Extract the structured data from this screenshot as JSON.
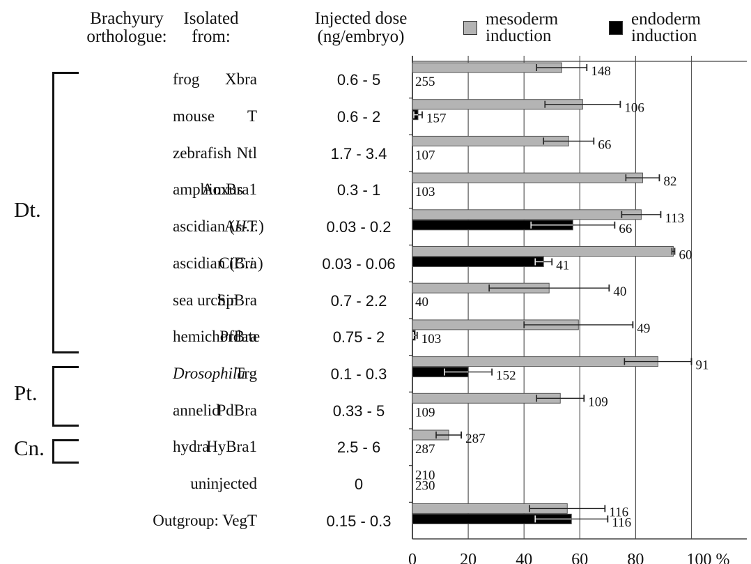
{
  "headers": {
    "orthologue": "Brachyury\northologue:",
    "source": "Isolated\nfrom:",
    "dose": "Injected dose\n(ng/embryo)"
  },
  "legend": [
    {
      "label": "mesoderm\ninduction",
      "color": "#b4b4b4"
    },
    {
      "label": "endoderm\ninduction",
      "color": "#000000"
    }
  ],
  "clades": [
    {
      "label": "Dt.",
      "first_row": 0,
      "last_row": 7
    },
    {
      "label": "Pt.",
      "first_row": 8,
      "last_row": 9
    },
    {
      "label": "Cn.",
      "first_row": 10,
      "last_row": 10
    }
  ],
  "rows": [
    {
      "name": "Xbra",
      "source": "frog",
      "source_italic": "",
      "dose": "0.6 - 5"
    },
    {
      "name": "T",
      "source": "mouse",
      "source_italic": "",
      "dose": "0.6 - 2"
    },
    {
      "name": "Ntl",
      "source": "zebrafish",
      "source_italic": "",
      "dose": "1.7 - 3.4"
    },
    {
      "name": "AmBra1",
      "source": "amphioxus",
      "source_italic": "",
      "dose": "0.3 - 1"
    },
    {
      "name": "As-T",
      "source": "ascidian (",
      "source_italic": "H.r.",
      "source_suffix": ")",
      "dose": "0.03 - 0.2"
    },
    {
      "name": "CiBra",
      "source": "ascidian (",
      "source_italic": "C.i.",
      "source_suffix": ")",
      "dose": "0.03 - 0.06"
    },
    {
      "name": "SpBra",
      "source": "sea urchin",
      "source_italic": "",
      "dose": "0.7 - 2.2"
    },
    {
      "name": "PfBra",
      "source": "hemichordate",
      "source_italic": "",
      "dose": "0.75 - 2"
    },
    {
      "name": "Trg",
      "source": "",
      "source_italic": "Drosophila",
      "dose": "0.1 - 0.3"
    },
    {
      "name": "PdBra",
      "source": "annelid",
      "source_italic": "",
      "dose": "0.33 - 5"
    },
    {
      "name": "HyBra1",
      "source": "hydra",
      "source_italic": "",
      "dose": "2.5 - 6"
    },
    {
      "name": "uninjected",
      "source": "",
      "source_italic": "",
      "dose": "0"
    },
    {
      "name": "Outgroup: VegT",
      "source": "",
      "source_italic": "",
      "dose": "0.15 - 0.3"
    }
  ],
  "chart_data": {
    "type": "bar",
    "orientation": "horizontal",
    "title": "",
    "xlabel": "",
    "ylabel": "",
    "xlim": [
      0,
      100
    ],
    "x_ticks": [
      "0",
      "20",
      "40",
      "60",
      "80",
      "100 %"
    ],
    "x_tick_values": [
      0,
      20,
      40,
      60,
      80,
      100
    ],
    "grid": true,
    "legend_position": "top-right",
    "categories": [
      "Xbra",
      "T",
      "Ntl",
      "AmBra1",
      "As-T",
      "CiBra",
      "SpBra",
      "PfBra",
      "Trg",
      "PdBra",
      "HyBra1",
      "uninjected",
      "Outgroup: VegT"
    ],
    "series": [
      {
        "name": "mesoderm induction",
        "color": "#b4b4b4",
        "values": [
          53.5,
          61,
          56,
          82.5,
          82,
          93.5,
          49,
          59.5,
          88,
          53,
          13,
          0,
          55.5
        ],
        "errors": [
          9,
          13.5,
          9,
          6,
          7,
          0.5,
          21.5,
          19.5,
          12,
          8.5,
          4.5,
          0,
          13.5
        ],
        "n_labels": [
          "148",
          "106",
          "66",
          "82",
          "113",
          "60",
          "40",
          "49",
          "91",
          "109",
          "287",
          "210",
          "116"
        ]
      },
      {
        "name": "endoderm induction",
        "color": "#000000",
        "values": [
          0,
          2,
          0,
          0,
          57.5,
          47,
          0,
          1,
          20,
          0,
          0,
          0,
          57
        ],
        "errors": [
          0,
          1.5,
          0,
          0,
          15,
          3,
          0,
          0.7,
          8.5,
          0,
          0,
          0,
          13
        ],
        "n_labels": [
          "255",
          "157",
          "107",
          "103",
          "66",
          "41",
          "40",
          "103",
          "152",
          "109",
          "287",
          "230",
          "116"
        ]
      }
    ]
  }
}
